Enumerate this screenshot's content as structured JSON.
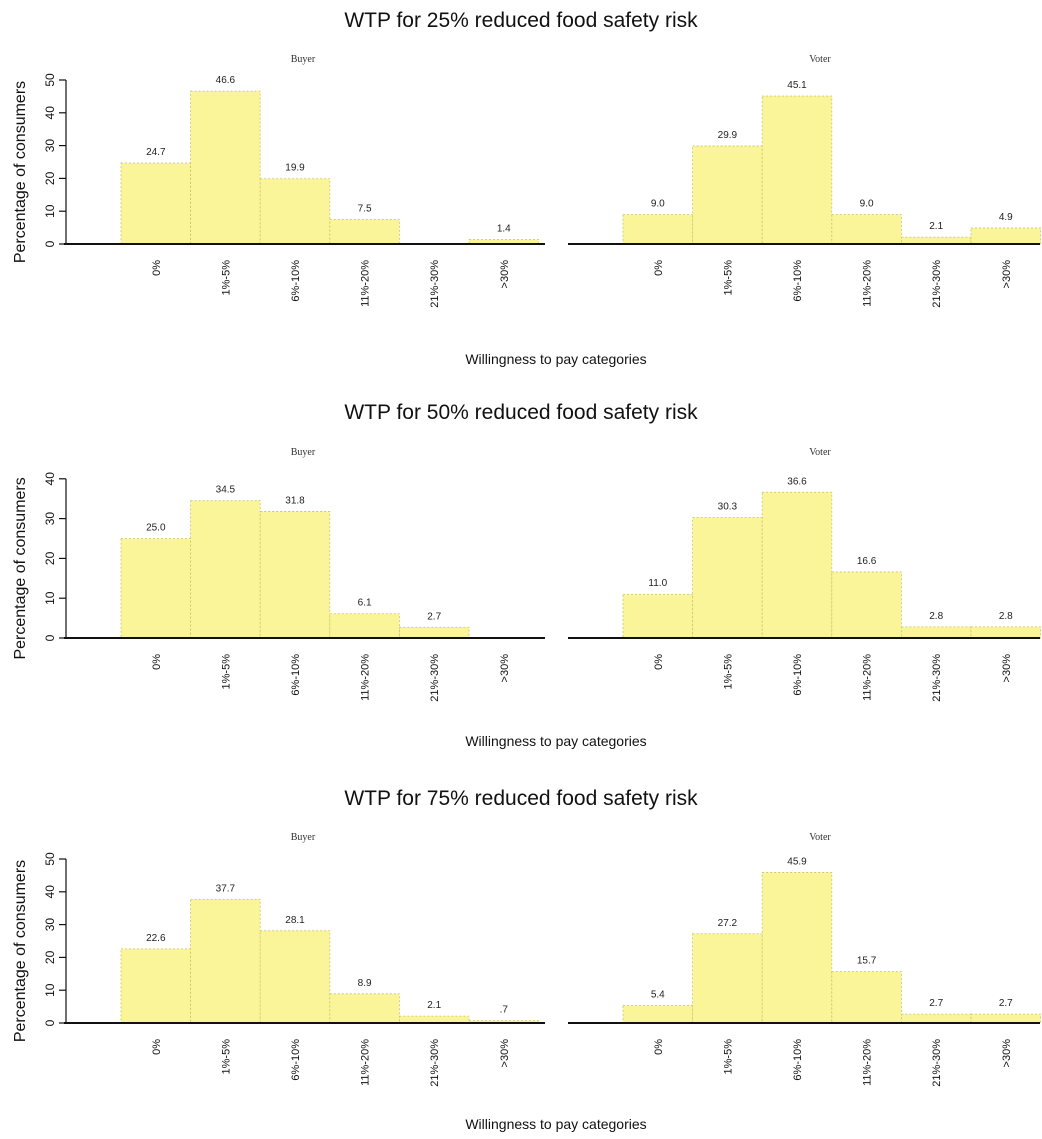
{
  "chart_data": [
    {
      "type": "bar",
      "section_title": "WTP for 25% reduced food safety risk",
      "ylabel": "Percentage of consumers",
      "xlabel": "Willingness to pay categories",
      "ylim": [
        0,
        50
      ],
      "yticks": [
        "0",
        "10",
        "20",
        "30",
        "40",
        "50"
      ],
      "panels": [
        {
          "title": "Buyer",
          "categories": [
            "0%",
            "1%-5%",
            "6%-10%",
            "11%-20%",
            "21%-30%",
            ">30%"
          ],
          "values": [
            24.7,
            46.6,
            19.9,
            7.5,
            0,
            1.4
          ],
          "labels": [
            "24.7",
            "46.6",
            "19.9",
            "7.5",
            "",
            "1.4"
          ]
        },
        {
          "title": "Voter",
          "categories": [
            "0%",
            "1%-5%",
            "6%-10%",
            "11%-20%",
            "21%-30%",
            ">30%"
          ],
          "values": [
            9.0,
            29.9,
            45.1,
            9.0,
            2.1,
            4.9
          ],
          "labels": [
            "9.0",
            "29.9",
            "45.1",
            "9.0",
            "2.1",
            "4.9"
          ]
        }
      ]
    },
    {
      "type": "bar",
      "section_title": "WTP for 50% reduced food safety risk",
      "ylabel": "Percentage of consumers",
      "xlabel": "Willingness to pay categories",
      "ylim": [
        0,
        40
      ],
      "yticks": [
        "0",
        "10",
        "20",
        "30",
        "40"
      ],
      "panels": [
        {
          "title": "Buyer",
          "categories": [
            "0%",
            "1%-5%",
            "6%-10%",
            "11%-20%",
            "21%-30%",
            ">30%"
          ],
          "values": [
            25.0,
            34.5,
            31.8,
            6.1,
            2.7,
            0
          ],
          "labels": [
            "25.0",
            "34.5",
            "31.8",
            "6.1",
            "2.7",
            ""
          ]
        },
        {
          "title": "Voter",
          "categories": [
            "0%",
            "1%-5%",
            "6%-10%",
            "11%-20%",
            "21%-30%",
            ">30%"
          ],
          "values": [
            11.0,
            30.3,
            36.6,
            16.6,
            2.8,
            2.8
          ],
          "labels": [
            "11.0",
            "30.3",
            "36.6",
            "16.6",
            "2.8",
            "2.8"
          ]
        }
      ]
    },
    {
      "type": "bar",
      "section_title": "WTP for 75% reduced food safety risk",
      "ylabel": "Percentage of consumers",
      "xlabel": "Willingness to pay categories",
      "ylim": [
        0,
        50
      ],
      "yticks": [
        "0",
        "10",
        "20",
        "30",
        "40",
        "50"
      ],
      "panels": [
        {
          "title": "Buyer",
          "categories": [
            "0%",
            "1%-5%",
            "6%-10%",
            "11%-20%",
            "21%-30%",
            ">30%"
          ],
          "values": [
            22.6,
            37.7,
            28.1,
            8.9,
            2.1,
            0.7
          ],
          "labels": [
            "22.6",
            "37.7",
            "28.1",
            "8.9",
            "2.1",
            ".7"
          ]
        },
        {
          "title": "Voter",
          "categories": [
            "0%",
            "1%-5%",
            "6%-10%",
            "11%-20%",
            "21%-30%",
            ">30%"
          ],
          "values": [
            5.4,
            27.2,
            45.9,
            15.7,
            2.7,
            2.7
          ],
          "labels": [
            "5.4",
            "27.2",
            "45.9",
            "15.7",
            "2.7",
            "2.7"
          ]
        }
      ]
    }
  ]
}
